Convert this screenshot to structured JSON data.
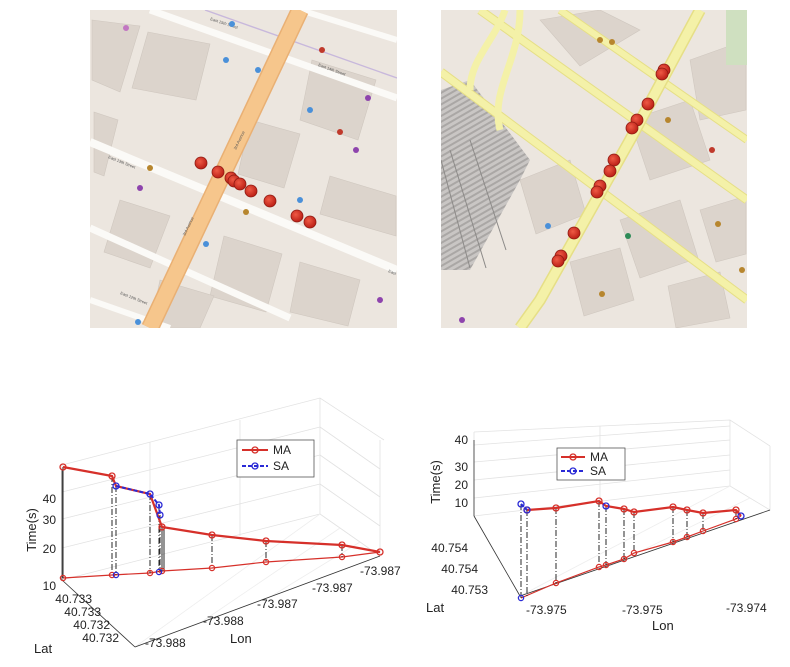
{
  "maps": [
    {
      "labels": [
        "East 15th Street",
        "East 13th Street",
        "East 12th Street",
        "East 14th Street",
        "3rd Avenue",
        "3rd Avenue",
        "East"
      ],
      "marker_count": 10
    },
    {
      "labels": [],
      "marker_count": 15
    }
  ],
  "colors": {
    "ma": "#d6302a",
    "sa": "#2a2ad6",
    "marker_fill": "#d8281e",
    "map_bg": "#ece6df",
    "street": "#fbfaf7",
    "avenue": "#f6c68c",
    "yellow_road": "#f4f1a8"
  },
  "chart_data": [
    {
      "type": "line",
      "projection": "3d",
      "title": "",
      "xlabel": "Lon",
      "ylabel": "Lat",
      "zlabel": "Time(s)",
      "z_ticks": [
        "10",
        "20",
        "30",
        "40"
      ],
      "lon_ticks": [
        "-73.988",
        "-73.988",
        "-73.987",
        "-73.987",
        "-73.987"
      ],
      "lat_ticks": [
        "40.733",
        "40.733",
        "40.732",
        "40.732"
      ],
      "legend": [
        "MA",
        "SA"
      ],
      "legend_position": "top-right",
      "series": [
        {
          "name": "MA",
          "values": [
            43,
            40,
            33,
            18,
            16,
            12,
            8,
            1
          ]
        },
        {
          "name": "SA",
          "values": [
            35,
            32,
            29,
            27
          ]
        }
      ]
    },
    {
      "type": "line",
      "projection": "3d",
      "title": "",
      "xlabel": "Lon",
      "ylabel": "Lat",
      "zlabel": "Time(s)",
      "z_ticks": [
        "10",
        "20",
        "30",
        "40"
      ],
      "lon_ticks": [
        "-73.975",
        "-73.975",
        "-73.974"
      ],
      "lat_ticks": [
        "40.754",
        "40.754",
        "40.753"
      ],
      "legend": [
        "MA",
        "SA"
      ],
      "legend_position": "top-center",
      "series": [
        {
          "name": "MA",
          "values": [
            7,
            8,
            11,
            8,
            6,
            9,
            8,
            6,
            5,
            4,
            3
          ]
        },
        {
          "name": "SA",
          "values": [
            12,
            9,
            2
          ]
        }
      ]
    }
  ]
}
